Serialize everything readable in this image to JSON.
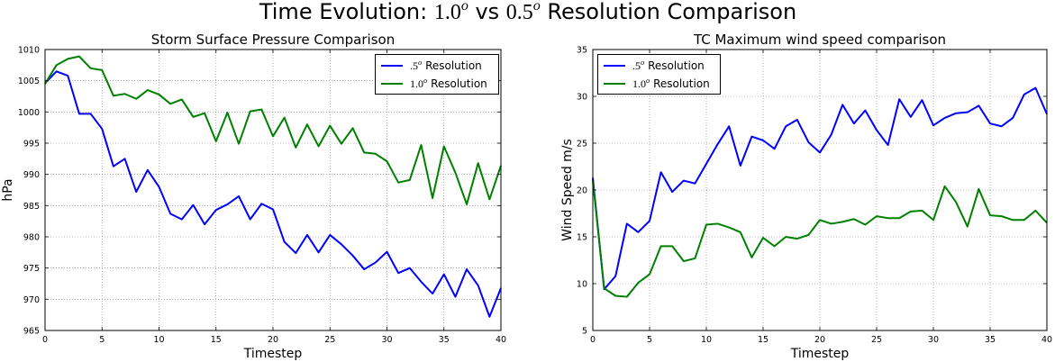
{
  "figure": {
    "title": {
      "lead": "Time Evolution: ",
      "res_a": "1.0",
      "res_a_sup": "o",
      "mid": " vs ",
      "res_b": "0.5",
      "res_b_sup": "o",
      "tail": " Resolution Comparison"
    }
  },
  "chart_data": [
    {
      "type": "line",
      "title": "Storm Surface Pressure Comparison",
      "xlabel": "Timestep",
      "ylabel": "hPa",
      "xlim": [
        0,
        40
      ],
      "ylim": [
        965,
        1010
      ],
      "xticks": [
        0,
        5,
        10,
        15,
        20,
        25,
        30,
        35,
        40
      ],
      "yticks": [
        965,
        970,
        975,
        980,
        985,
        990,
        995,
        1000,
        1005,
        1010
      ],
      "grid": true,
      "legend": "top-right",
      "x": [
        0,
        1,
        2,
        3,
        4,
        5,
        6,
        7,
        8,
        9,
        10,
        11,
        12,
        13,
        14,
        15,
        16,
        17,
        18,
        19,
        20,
        21,
        22,
        23,
        24,
        25,
        26,
        27,
        28,
        29,
        30,
        31,
        32,
        33,
        34,
        35,
        36,
        37,
        38,
        39,
        40
      ],
      "series": [
        {
          "name": {
            "base": ".5",
            "sup": "o",
            "rest": " Resolution"
          },
          "color": "#0000ff",
          "values": [
            1004.6,
            1006.5,
            1005.8,
            999.7,
            999.7,
            997.3,
            991.3,
            992.5,
            987.2,
            990.7,
            988.0,
            983.7,
            982.8,
            985.1,
            982.0,
            984.3,
            985.2,
            986.5,
            982.8,
            985.3,
            984.4,
            979.2,
            977.4,
            980.3,
            977.5,
            980.3,
            978.8,
            977.0,
            974.8,
            975.9,
            977.6,
            974.2,
            975.0,
            972.8,
            970.9,
            974.0,
            970.4,
            974.8,
            972.2,
            967.2,
            971.8
          ]
        },
        {
          "name": {
            "base": "1.0",
            "sup": "o",
            "rest": " Resolution"
          },
          "color": "#008000",
          "values": [
            1004.5,
            1007.5,
            1008.5,
            1008.9,
            1007.0,
            1006.7,
            1002.6,
            1002.9,
            1002.1,
            1003.5,
            1002.8,
            1001.3,
            1002.0,
            999.2,
            999.8,
            995.3,
            999.9,
            994.9,
            1000.1,
            1000.4,
            996.1,
            999.1,
            994.3,
            998.0,
            994.5,
            997.8,
            994.9,
            997.4,
            993.5,
            993.3,
            992.1,
            988.7,
            989.1,
            994.7,
            986.2,
            994.5,
            990.3,
            985.2,
            991.8,
            986.0,
            991.4
          ]
        }
      ]
    },
    {
      "type": "line",
      "title": "TC Maximum wind speed comparison",
      "xlabel": "Timestep",
      "ylabel": "Wind Speed m/s",
      "xlim": [
        0,
        40
      ],
      "ylim": [
        5,
        35
      ],
      "xticks": [
        0,
        5,
        10,
        15,
        20,
        25,
        30,
        35,
        40
      ],
      "yticks": [
        5,
        10,
        15,
        20,
        25,
        30,
        35
      ],
      "grid": true,
      "legend": "top-left",
      "x": [
        0,
        1,
        2,
        3,
        4,
        5,
        6,
        7,
        8,
        9,
        10,
        11,
        12,
        13,
        14,
        15,
        16,
        17,
        18,
        19,
        20,
        21,
        22,
        23,
        24,
        25,
        26,
        27,
        28,
        29,
        30,
        31,
        32,
        33,
        34,
        35,
        36,
        37,
        38,
        39,
        40
      ],
      "series": [
        {
          "name": {
            "base": ".5",
            "sup": "o",
            "rest": " Resolution"
          },
          "color": "#0000ff",
          "values": [
            21.3,
            9.4,
            10.8,
            16.4,
            15.5,
            16.7,
            21.9,
            19.8,
            21.0,
            20.7,
            22.8,
            24.9,
            26.8,
            22.6,
            25.7,
            25.3,
            24.4,
            26.8,
            27.5,
            25.1,
            24.0,
            25.9,
            29.1,
            27.1,
            28.5,
            26.4,
            24.8,
            29.7,
            27.8,
            29.6,
            26.9,
            27.7,
            28.2,
            28.3,
            29.0,
            27.1,
            26.8,
            27.7,
            30.2,
            30.9,
            28.1
          ]
        },
        {
          "name": {
            "base": "1.0",
            "sup": "o",
            "rest": " Resolution"
          },
          "color": "#008000",
          "values": [
            21.0,
            9.5,
            8.7,
            8.6,
            10.1,
            11.0,
            14.0,
            14.0,
            12.4,
            12.7,
            16.3,
            16.4,
            16.0,
            15.5,
            12.8,
            14.9,
            14.0,
            15.0,
            14.8,
            15.2,
            16.8,
            16.4,
            16.6,
            16.9,
            16.3,
            17.2,
            17.0,
            17.0,
            17.7,
            17.8,
            16.8,
            20.4,
            18.7,
            16.1,
            20.1,
            17.3,
            17.2,
            16.8,
            16.8,
            17.8,
            16.5
          ]
        }
      ]
    }
  ]
}
